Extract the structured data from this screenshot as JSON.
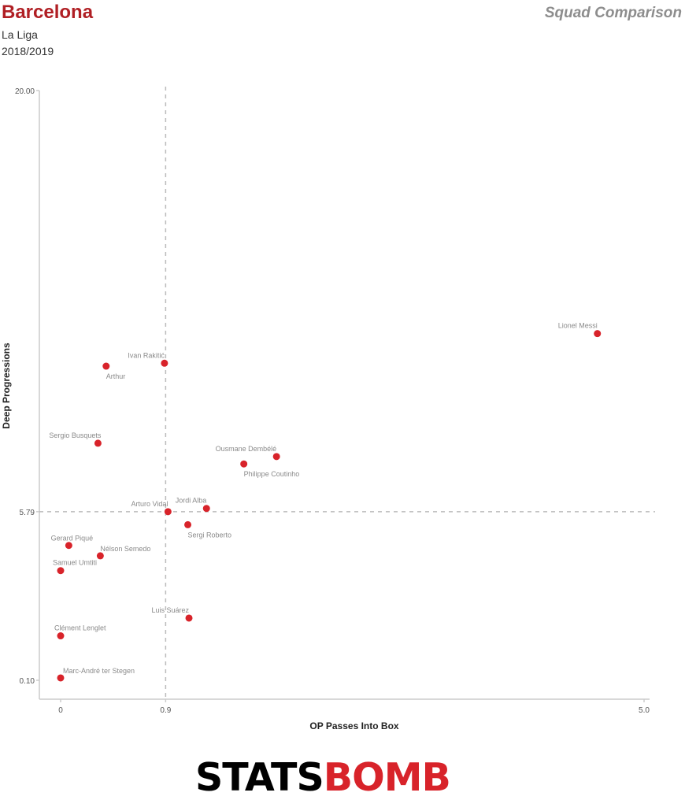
{
  "header": {
    "team": "Barcelona",
    "league": "La Liga",
    "season": "2018/2019",
    "report_title": "Squad Comparison"
  },
  "logo": {
    "part1": "STATS",
    "part2": "BOMB"
  },
  "colors": {
    "accent": "#b01f24",
    "point": "#d8232a",
    "axis": "#cccccc",
    "label": "#8a8a8a"
  },
  "chart_data": {
    "type": "scatter",
    "xlabel": "OP Passes Into Box",
    "ylabel": "Deep Progressions",
    "xlim": [
      0,
      5.0
    ],
    "ylim": [
      0.1,
      20.0
    ],
    "x_ticks": [
      "0",
      "0.9",
      "5.0"
    ],
    "y_ticks": [
      "0.10",
      "5.79",
      "20.00"
    ],
    "reference_lines": {
      "x": 0.9,
      "y": 5.79
    },
    "points": [
      {
        "name": "Lionel Messi",
        "x": 4.6,
        "y": 11.8
      },
      {
        "name": "Ivan Rakitić",
        "x": 0.89,
        "y": 10.8
      },
      {
        "name": "Arthur",
        "x": 0.39,
        "y": 10.7
      },
      {
        "name": "Sergio Busquets",
        "x": 0.32,
        "y": 8.1
      },
      {
        "name": "Ousmane Dembélé",
        "x": 1.85,
        "y": 7.65
      },
      {
        "name": "Philippe Coutinho",
        "x": 1.57,
        "y": 7.4
      },
      {
        "name": "Jordi Alba",
        "x": 1.25,
        "y": 5.9
      },
      {
        "name": "Arturo Vidal",
        "x": 0.92,
        "y": 5.79
      },
      {
        "name": "Sergi Roberto",
        "x": 1.09,
        "y": 5.35
      },
      {
        "name": "Gerard Piqué",
        "x": 0.07,
        "y": 4.65
      },
      {
        "name": "Nélson Semedo",
        "x": 0.34,
        "y": 4.3
      },
      {
        "name": "Samuel Umtiti",
        "x": 0.0,
        "y": 3.8
      },
      {
        "name": "Luis Suárez",
        "x": 1.1,
        "y": 2.2
      },
      {
        "name": "Clément Lenglet",
        "x": 0.0,
        "y": 1.6
      },
      {
        "name": "Marc-André ter Stegen",
        "x": 0.0,
        "y": 0.18
      }
    ]
  }
}
